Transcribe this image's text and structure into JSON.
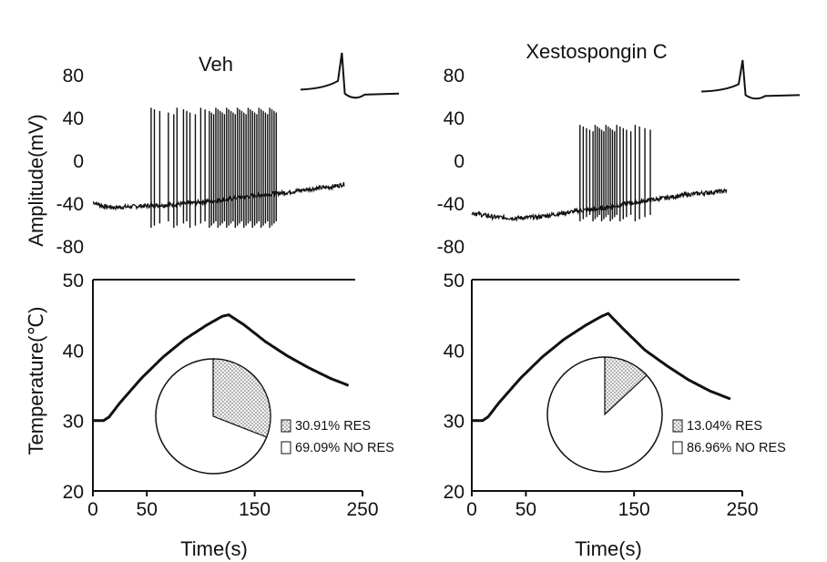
{
  "figure": {
    "shared_ylabel_amplitude": "Amplitude(mV)",
    "shared_ylabel_temperature": "Temperature(℃)",
    "shared_xlabel": "Time(s)"
  },
  "chart_data": [
    {
      "type": "line",
      "panel": "Veh",
      "title": "Veh",
      "membrane_potential": {
        "ylabel": "Amplitude(mV)",
        "ylim": [
          -90,
          80
        ],
        "yticks": [
          80,
          40,
          0,
          -40,
          -80
        ],
        "x": [
          0,
          5,
          10,
          20,
          40,
          60,
          80,
          100,
          120,
          140,
          160,
          180,
          200,
          220,
          240
        ],
        "baseline": [
          -38,
          -40,
          -42,
          -43,
          -42,
          -41,
          -40,
          -38,
          -36,
          -33,
          -31,
          -29,
          -26,
          -24,
          -20
        ],
        "spikes": {
          "times": [
            54,
            57,
            62,
            70,
            75,
            78,
            84,
            87,
            90,
            95,
            100,
            104,
            108,
            110,
            112,
            114,
            116,
            118,
            120,
            122,
            124,
            126,
            128,
            130,
            132,
            134,
            136,
            138,
            140,
            142,
            144,
            146,
            148,
            150,
            152,
            154,
            156,
            158,
            160,
            162,
            164,
            166,
            168,
            170
          ],
          "peak_mV": 50,
          "trough_mV": -62
        }
      },
      "temperature": {
        "ylabel": "Temperature(℃)",
        "ylim": [
          20,
          50
        ],
        "yticks": [
          50,
          40,
          30,
          20
        ],
        "x": [
          0,
          10,
          15,
          25,
          45,
          65,
          85,
          105,
          120,
          126,
          140,
          160,
          180,
          200,
          220,
          240
        ],
        "values": [
          30,
          30,
          30.5,
          32.5,
          36.0,
          39.0,
          41.5,
          43.5,
          44.8,
          45.0,
          43.6,
          41.2,
          39.2,
          37.5,
          36.0,
          34.8
        ]
      },
      "xlabel": "Time(s)",
      "xlim": [
        0,
        250
      ],
      "xticks": [
        0,
        50,
        150,
        250
      ],
      "pie": {
        "type": "pie",
        "slices": [
          {
            "label": "RES",
            "value": 30.91,
            "legend": "30.91% RES",
            "fill": "dotted"
          },
          {
            "label": "NO RES",
            "value": 69.09,
            "legend": "69.09% NO RES",
            "fill": "#ffffff"
          }
        ]
      }
    },
    {
      "type": "line",
      "panel": "Xestospongin C",
      "title": "Xestospongin C",
      "membrane_potential": {
        "ylabel": "Amplitude(mV)",
        "ylim": [
          -90,
          80
        ],
        "yticks": [
          80,
          40,
          0,
          -40,
          -80
        ],
        "x": [
          0,
          10,
          20,
          40,
          60,
          80,
          100,
          120,
          140,
          160,
          180,
          200,
          220,
          240
        ],
        "baseline": [
          -48,
          -50,
          -52,
          -53,
          -52,
          -49,
          -46,
          -44,
          -40,
          -37,
          -34,
          -31,
          -29,
          -27
        ],
        "spikes": {
          "times": [
            100,
            103,
            106,
            109,
            112,
            114,
            116,
            118,
            120,
            122,
            124,
            126,
            128,
            130,
            132,
            134,
            137,
            140,
            143,
            147,
            151,
            155,
            160,
            165
          ],
          "peak_mV": 34,
          "trough_mV": -56
        }
      },
      "temperature": {
        "ylabel": "Temperature(℃)",
        "ylim": [
          20,
          50
        ],
        "yticks": [
          50,
          40,
          30,
          20
        ],
        "x": [
          0,
          10,
          15,
          25,
          45,
          65,
          85,
          105,
          120,
          126,
          140,
          160,
          180,
          200,
          220,
          240
        ],
        "values": [
          30,
          30,
          30.5,
          32.5,
          36.0,
          39.0,
          41.5,
          43.5,
          44.8,
          45.2,
          43.0,
          40.0,
          37.8,
          35.8,
          34.2,
          33.0
        ]
      },
      "xlabel": "Time(s)",
      "xlim": [
        0,
        250
      ],
      "xticks": [
        0,
        50,
        150,
        250
      ],
      "pie": {
        "type": "pie",
        "slices": [
          {
            "label": "RES",
            "value": 13.04,
            "legend": "13.04% RES",
            "fill": "dotted"
          },
          {
            "label": "NO RES",
            "value": 86.96,
            "legend": "86.96% NO RES",
            "fill": "#ffffff"
          }
        ]
      }
    }
  ]
}
